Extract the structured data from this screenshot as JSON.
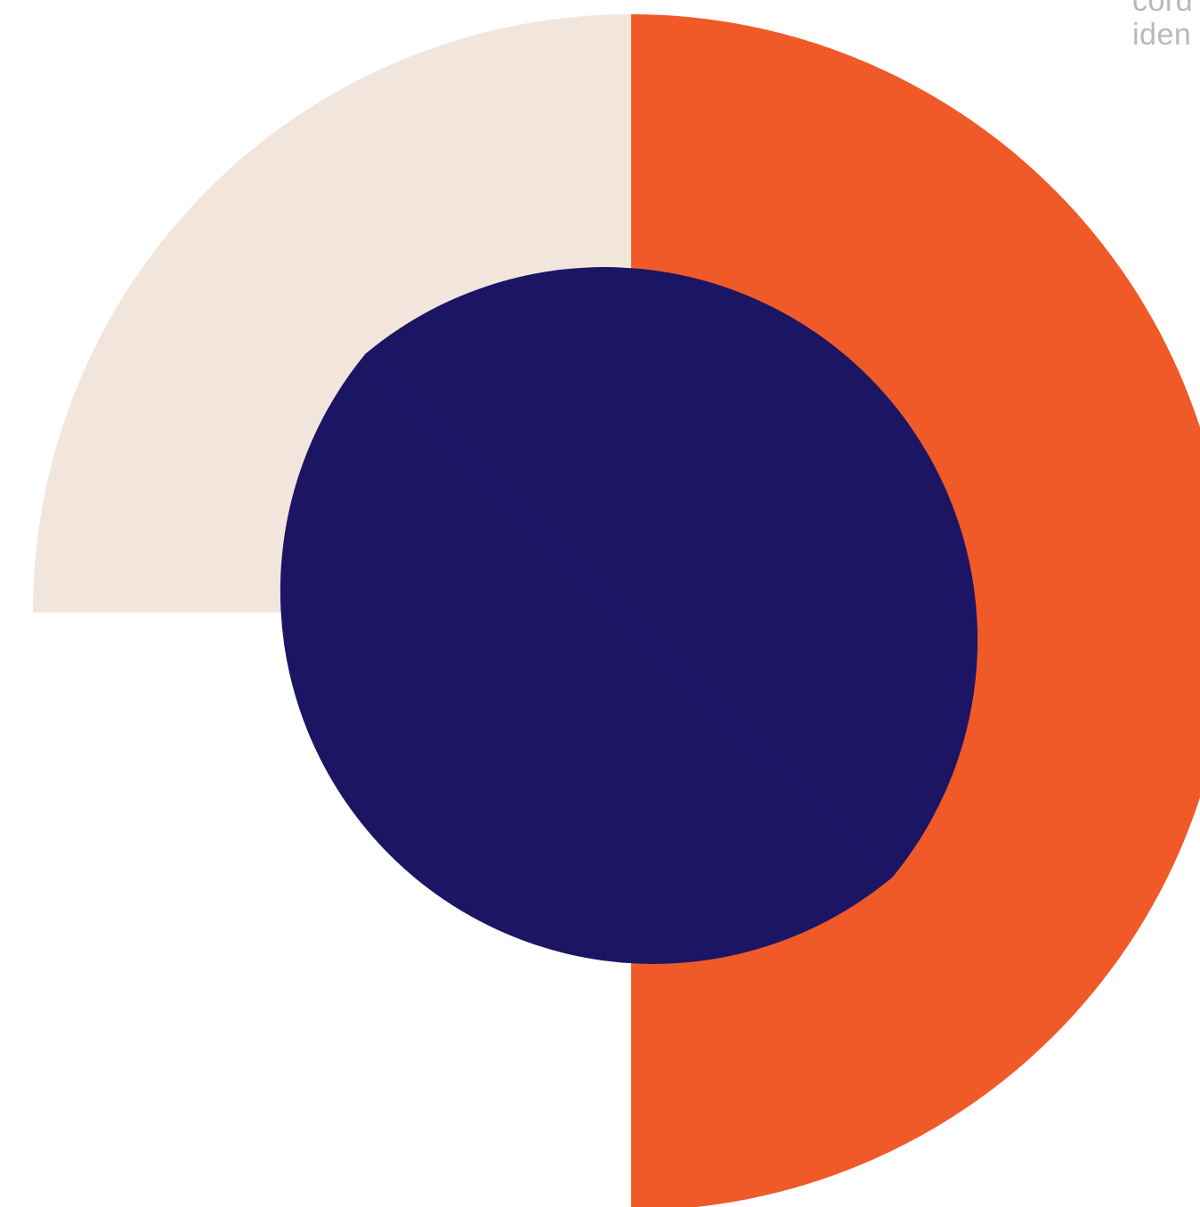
{
  "corner_text": {
    "line1": "cord",
    "line2": "iden"
  },
  "colors": {
    "background": "#ffffff",
    "cream": "#f2e6dc",
    "orange": "#f05a28",
    "navy": "#1c1564",
    "text_gray": "#b8b8b8"
  }
}
